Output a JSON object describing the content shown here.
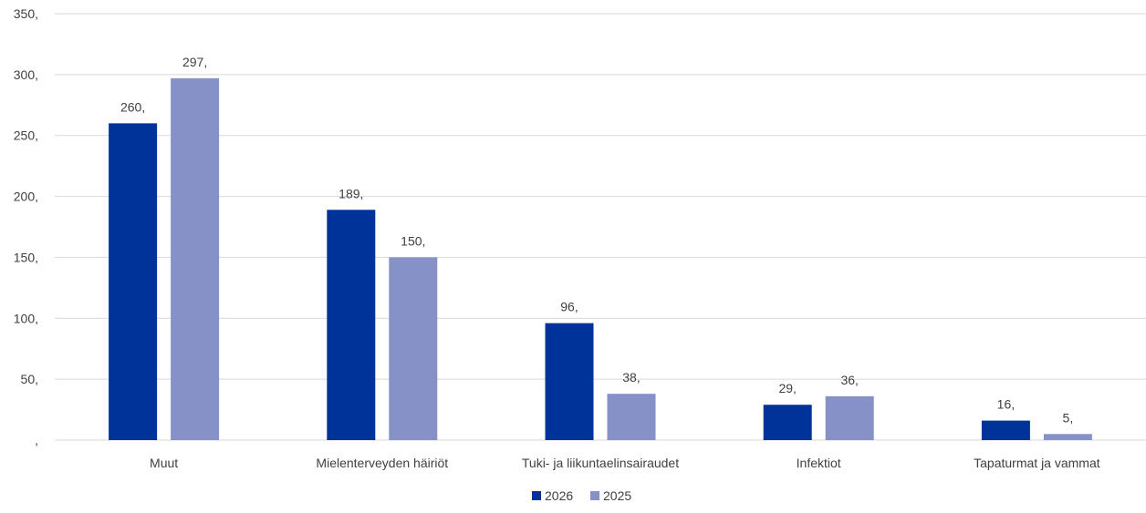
{
  "chart_data": {
    "type": "bar",
    "categories": [
      "Muut",
      "Mielenterveyden häiriöt",
      "Tuki- ja liikuntaelinsairaudet",
      "Infektiot",
      "Tapaturmat ja vammat"
    ],
    "series": [
      {
        "name": "2026",
        "values": [
          260,
          189,
          96,
          29,
          16
        ],
        "color": "#003399"
      },
      {
        "name": "2025",
        "values": [
          297,
          150,
          38,
          36,
          5
        ],
        "color": "#8591C7"
      }
    ],
    "data_labels": [
      [
        "260,",
        "189,",
        "96,",
        "29,",
        "16,"
      ],
      [
        "297,",
        "150,",
        "38,",
        "36,",
        "5,"
      ]
    ],
    "y_ticks": [
      0,
      50,
      100,
      150,
      200,
      250,
      300,
      350
    ],
    "y_tick_labels": [
      ",",
      "50,",
      "100,",
      "150,",
      "200,",
      "250,",
      "300,",
      "350,"
    ],
    "ylim": [
      0,
      350
    ],
    "title": "",
    "xlabel": "",
    "ylabel": "",
    "grid": true,
    "legend": "bottom-center",
    "colors": {
      "gridline": "#D9D9D9",
      "text": "#404040"
    }
  }
}
